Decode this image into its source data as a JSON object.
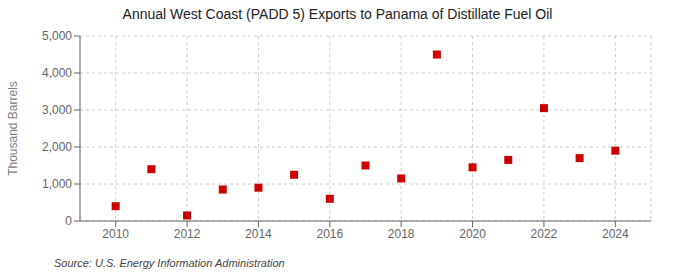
{
  "chart_data": {
    "type": "scatter",
    "title": "Annual West Coast (PADD 5) Exports to Panama of Distillate Fuel Oil",
    "ylabel": "Thousand Barrels",
    "annotations": [
      "Source: U.S. Energy Information Administration"
    ],
    "x": [
      2010,
      2011,
      2012,
      2013,
      2014,
      2015,
      2016,
      2017,
      2018,
      2019,
      2020,
      2021,
      2022,
      2023,
      2024
    ],
    "values": [
      400,
      1400,
      150,
      850,
      900,
      1250,
      600,
      1500,
      1150,
      4500,
      1450,
      1650,
      3050,
      1700,
      1900
    ],
    "color": "#cc0000",
    "marker": "square",
    "grid": true,
    "xlim": [
      2009,
      2025
    ],
    "xticks": [
      2010,
      2012,
      2014,
      2016,
      2018,
      2020,
      2022,
      2024
    ],
    "ylim": [
      0,
      5000
    ],
    "yticks": [
      0,
      {
        "value": 1000,
        "label": "1,000"
      },
      {
        "value": 2000,
        "label": "2,000"
      },
      {
        "value": 3000,
        "label": "3,000"
      },
      {
        "value": 4000,
        "label": "4,000"
      },
      {
        "value": 5000,
        "label": "5,000"
      }
    ]
  }
}
